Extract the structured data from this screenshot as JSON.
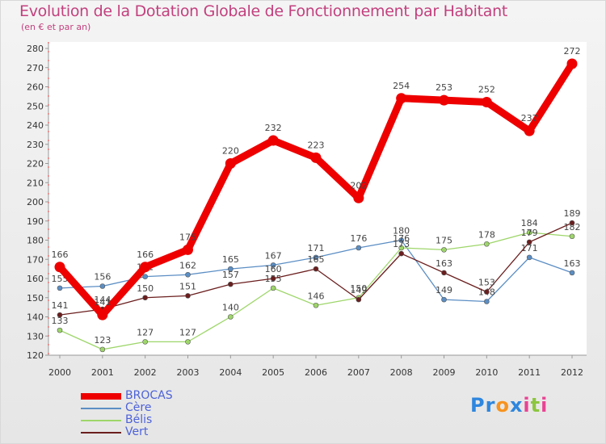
{
  "header": {
    "title": "Evolution de la Dotation Globale de Fonctionnement par Habitant",
    "subtitle": "(en € et par an)"
  },
  "logo": {
    "text": "Proxiti",
    "letters": [
      "P",
      "r",
      "o",
      "x",
      "i",
      "t",
      "i"
    ],
    "colors": [
      "#2e86de",
      "#2e86de",
      "#f7931e",
      "#2e86de",
      "#e84393",
      "#8cc63f",
      "#e84393"
    ]
  },
  "chart_data": {
    "type": "line",
    "title": "Evolution de la Dotation Globale de Fonctionnement par Habitant",
    "subtitle": "(en € et par an)",
    "categories": [
      "2000",
      "2001",
      "2002",
      "2003",
      "2004",
      "2005",
      "2006",
      "2007",
      "2008",
      "2009",
      "2010",
      "2011",
      "2012"
    ],
    "ylim": [
      120,
      280
    ],
    "yticks": [
      120,
      130,
      140,
      150,
      160,
      170,
      180,
      190,
      200,
      210,
      220,
      230,
      240,
      250,
      260,
      270,
      280
    ],
    "grid": false,
    "legend_position": "bottom-left",
    "series": [
      {
        "name": "BROCAS",
        "color": "#ee0000",
        "emphasis": true,
        "values": [
          166,
          141,
          166,
          175,
          220,
          232,
          223,
          202,
          254,
          253,
          252,
          237,
          272
        ]
      },
      {
        "name": "Cère",
        "color": "#5b8ec4",
        "emphasis": false,
        "values": [
          155,
          156,
          161,
          162,
          165,
          167,
          171,
          176,
          180,
          149,
          148,
          171,
          163
        ]
      },
      {
        "name": "Bélis",
        "color": "#9ed66a",
        "emphasis": false,
        "values": [
          133,
          123,
          127,
          127,
          140,
          155,
          146,
          150,
          176,
          175,
          178,
          184,
          182
        ]
      },
      {
        "name": "Vert",
        "color": "#6b1e1e",
        "emphasis": false,
        "values": [
          141,
          144,
          150,
          151,
          157,
          160,
          165,
          149,
          173,
          163,
          153,
          179,
          189
        ]
      }
    ]
  }
}
